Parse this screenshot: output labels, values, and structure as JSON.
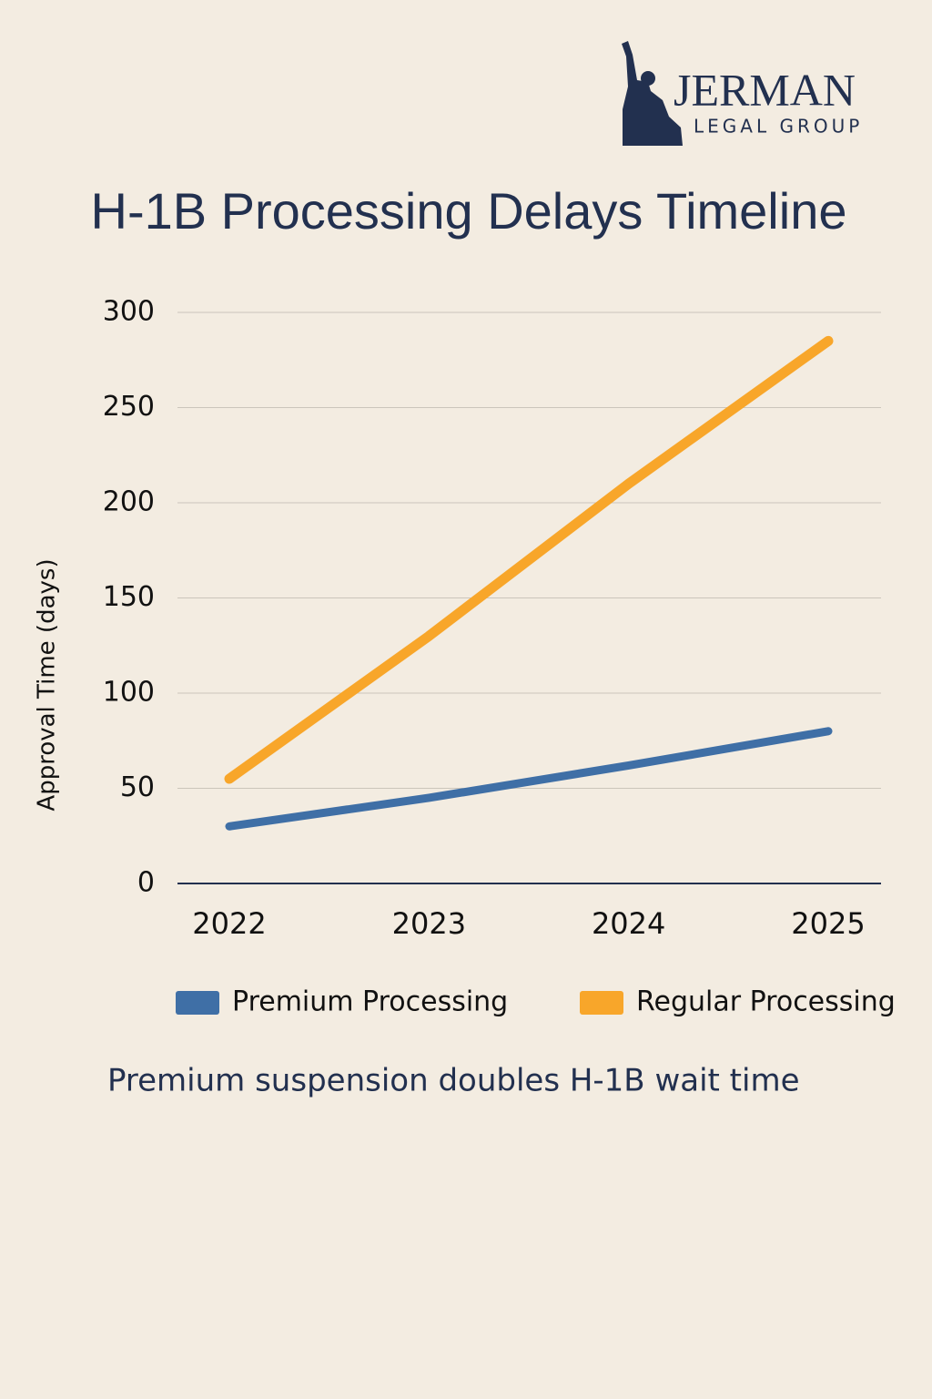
{
  "branding": {
    "name": "JERMAN",
    "tagline": "LEGAL GROUP"
  },
  "chart_data": {
    "type": "line",
    "title": "H-1B Processing Delays Timeline",
    "y_label": "Approval Time (days)",
    "categories": [
      "2022",
      "2023",
      "2024",
      "2025"
    ],
    "series": [
      {
        "name": "Premium Processing",
        "color": "#3f6fa6",
        "values": [
          30,
          45,
          62,
          80
        ]
      },
      {
        "name": "Regular Processing",
        "color": "#f8a62a",
        "values": [
          55,
          130,
          210,
          285
        ]
      }
    ],
    "ylim": [
      0,
      300
    ],
    "yticks": [
      0,
      50,
      100,
      150,
      200,
      250,
      300
    ],
    "grid": true,
    "legend": "bottom",
    "annotation": "Premium suspension doubles H-1B wait time"
  }
}
